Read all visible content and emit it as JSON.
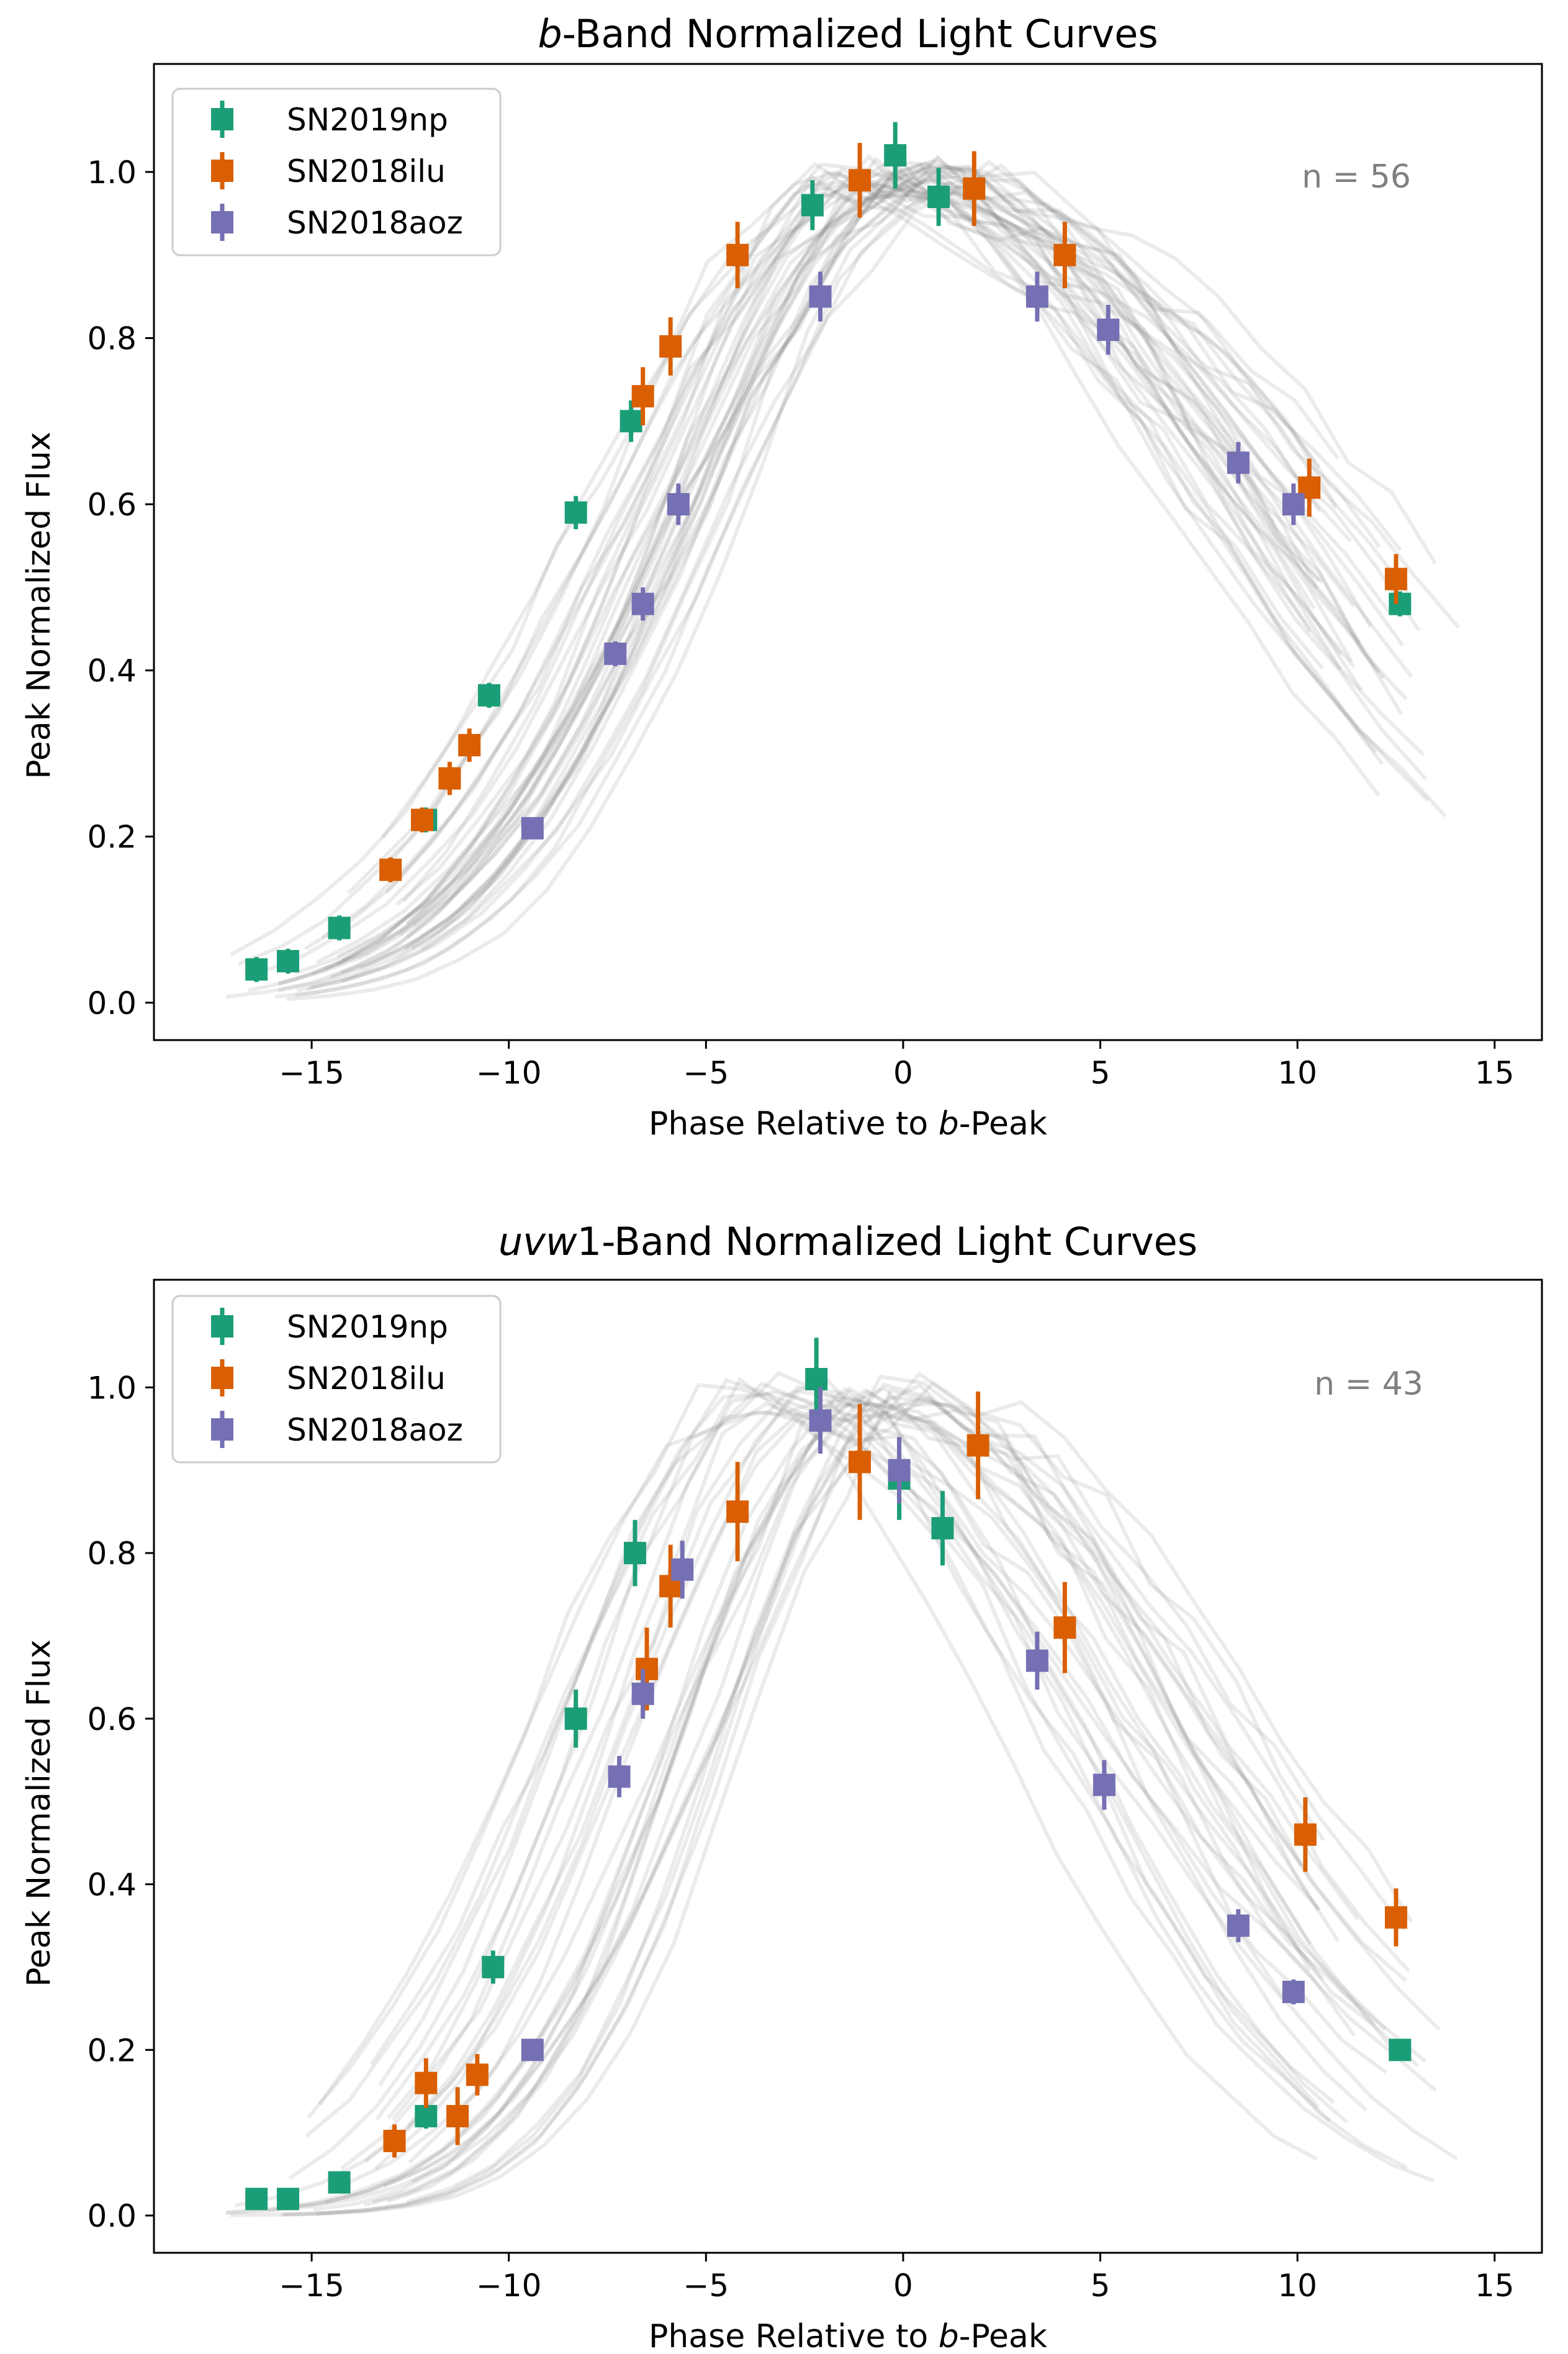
{
  "chart_data": [
    {
      "type": "scatter",
      "title_italic": "b",
      "title": "-Band Normalized Light Curves",
      "xlabel": "Phase Relative to ",
      "xlabel_italic": "b",
      "xlabel_suffix": "-Peak",
      "ylabel": "Peak Normalized Flux",
      "xlim": [
        -19.0,
        16.2
      ],
      "ylim": [
        -0.045,
        1.13
      ],
      "xticks": [
        -15,
        -10,
        -5,
        0,
        5,
        10,
        15
      ],
      "xtick_labels": [
        "−15",
        "−10",
        "−5",
        "0",
        "5",
        "10",
        "15"
      ],
      "yticks": [
        0.0,
        0.2,
        0.4,
        0.6,
        0.8,
        1.0
      ],
      "ytick_labels": [
        "0.0",
        "0.2",
        "0.4",
        "0.6",
        "0.8",
        "1.0"
      ],
      "annotation": "n = 56",
      "legend_position": "top-left",
      "series": [
        {
          "name": "SN2019np",
          "color": "#1b9e77",
          "points": [
            {
              "x": -16.4,
              "y": 0.04,
              "err": 0.015
            },
            {
              "x": -15.6,
              "y": 0.05,
              "err": 0.015
            },
            {
              "x": -14.3,
              "y": 0.09,
              "err": 0.015
            },
            {
              "x": -12.1,
              "y": 0.22,
              "err": 0.015
            },
            {
              "x": -10.5,
              "y": 0.37,
              "err": 0.015
            },
            {
              "x": -8.3,
              "y": 0.59,
              "err": 0.02
            },
            {
              "x": -6.9,
              "y": 0.7,
              "err": 0.025
            },
            {
              "x": -2.3,
              "y": 0.96,
              "err": 0.03
            },
            {
              "x": -0.2,
              "y": 1.02,
              "err": 0.04
            },
            {
              "x": 0.9,
              "y": 0.97,
              "err": 0.035
            },
            {
              "x": 12.6,
              "y": 0.48,
              "err": 0.015
            }
          ]
        },
        {
          "name": "SN2018ilu",
          "color": "#d95f02",
          "points": [
            {
              "x": -13.0,
              "y": 0.16,
              "err": 0.015
            },
            {
              "x": -12.2,
              "y": 0.22,
              "err": 0.015
            },
            {
              "x": -11.5,
              "y": 0.27,
              "err": 0.02
            },
            {
              "x": -11.0,
              "y": 0.31,
              "err": 0.02
            },
            {
              "x": -6.6,
              "y": 0.73,
              "err": 0.035
            },
            {
              "x": -5.9,
              "y": 0.79,
              "err": 0.035
            },
            {
              "x": -4.2,
              "y": 0.9,
              "err": 0.04
            },
            {
              "x": -1.1,
              "y": 0.99,
              "err": 0.045
            },
            {
              "x": 1.8,
              "y": 0.98,
              "err": 0.045
            },
            {
              "x": 4.1,
              "y": 0.9,
              "err": 0.04
            },
            {
              "x": 10.3,
              "y": 0.62,
              "err": 0.035
            },
            {
              "x": 12.5,
              "y": 0.51,
              "err": 0.03
            }
          ]
        },
        {
          "name": "SN2018aoz",
          "color": "#7570b3",
          "points": [
            {
              "x": -9.4,
              "y": 0.21,
              "err": 0.01
            },
            {
              "x": -7.3,
              "y": 0.42,
              "err": 0.015
            },
            {
              "x": -6.6,
              "y": 0.48,
              "err": 0.02
            },
            {
              "x": -5.7,
              "y": 0.6,
              "err": 0.025
            },
            {
              "x": -2.1,
              "y": 0.85,
              "err": 0.03
            },
            {
              "x": 3.4,
              "y": 0.85,
              "err": 0.03
            },
            {
              "x": 5.2,
              "y": 0.81,
              "err": 0.03
            },
            {
              "x": 8.5,
              "y": 0.65,
              "err": 0.025
            },
            {
              "x": 9.9,
              "y": 0.6,
              "err": 0.025
            }
          ]
        }
      ]
    },
    {
      "type": "scatter",
      "title_italic": "uvw",
      "title": "1-Band Normalized Light Curves",
      "xlabel": "Phase Relative to ",
      "xlabel_italic": "b",
      "xlabel_suffix": "-Peak",
      "ylabel": "Peak Normalized Flux",
      "xlim": [
        -19.0,
        16.2
      ],
      "ylim": [
        -0.045,
        1.13
      ],
      "xticks": [
        -15,
        -10,
        -5,
        0,
        5,
        10,
        15
      ],
      "xtick_labels": [
        "−15",
        "−10",
        "−5",
        "0",
        "5",
        "10",
        "15"
      ],
      "yticks": [
        0.0,
        0.2,
        0.4,
        0.6,
        0.8,
        1.0
      ],
      "ytick_labels": [
        "0.0",
        "0.2",
        "0.4",
        "0.6",
        "0.8",
        "1.0"
      ],
      "annotation": "n = 43",
      "legend_position": "top-left",
      "series": [
        {
          "name": "SN2019np",
          "color": "#1b9e77",
          "points": [
            {
              "x": -16.4,
              "y": 0.02,
              "err": 0.01
            },
            {
              "x": -15.6,
              "y": 0.02,
              "err": 0.01
            },
            {
              "x": -14.3,
              "y": 0.04,
              "err": 0.01
            },
            {
              "x": -12.1,
              "y": 0.12,
              "err": 0.015
            },
            {
              "x": -10.4,
              "y": 0.3,
              "err": 0.02
            },
            {
              "x": -8.3,
              "y": 0.6,
              "err": 0.035
            },
            {
              "x": -6.8,
              "y": 0.8,
              "err": 0.04
            },
            {
              "x": -2.2,
              "y": 1.01,
              "err": 0.05
            },
            {
              "x": -0.1,
              "y": 0.89,
              "err": 0.05
            },
            {
              "x": 1.0,
              "y": 0.83,
              "err": 0.045
            },
            {
              "x": 12.6,
              "y": 0.2,
              "err": 0.01
            }
          ]
        },
        {
          "name": "SN2018ilu",
          "color": "#d95f02",
          "points": [
            {
              "x": -12.9,
              "y": 0.09,
              "err": 0.02
            },
            {
              "x": -12.1,
              "y": 0.16,
              "err": 0.03
            },
            {
              "x": -11.3,
              "y": 0.12,
              "err": 0.035
            },
            {
              "x": -10.8,
              "y": 0.17,
              "err": 0.025
            },
            {
              "x": -6.5,
              "y": 0.66,
              "err": 0.05
            },
            {
              "x": -5.9,
              "y": 0.76,
              "err": 0.05
            },
            {
              "x": -4.2,
              "y": 0.85,
              "err": 0.06
            },
            {
              "x": -1.1,
              "y": 0.91,
              "err": 0.07
            },
            {
              "x": 1.9,
              "y": 0.93,
              "err": 0.065
            },
            {
              "x": 4.1,
              "y": 0.71,
              "err": 0.055
            },
            {
              "x": 10.2,
              "y": 0.46,
              "err": 0.045
            },
            {
              "x": 12.5,
              "y": 0.36,
              "err": 0.035
            }
          ]
        },
        {
          "name": "SN2018aoz",
          "color": "#7570b3",
          "points": [
            {
              "x": -9.4,
              "y": 0.2,
              "err": 0.01
            },
            {
              "x": -7.2,
              "y": 0.53,
              "err": 0.025
            },
            {
              "x": -6.6,
              "y": 0.63,
              "err": 0.03
            },
            {
              "x": -5.6,
              "y": 0.78,
              "err": 0.035
            },
            {
              "x": -2.1,
              "y": 0.96,
              "err": 0.04
            },
            {
              "x": -0.1,
              "y": 0.9,
              "err": 0.04
            },
            {
              "x": 3.4,
              "y": 0.67,
              "err": 0.035
            },
            {
              "x": 5.1,
              "y": 0.52,
              "err": 0.03
            },
            {
              "x": 8.5,
              "y": 0.35,
              "err": 0.02
            },
            {
              "x": 9.9,
              "y": 0.27,
              "err": 0.015
            }
          ]
        }
      ]
    }
  ]
}
